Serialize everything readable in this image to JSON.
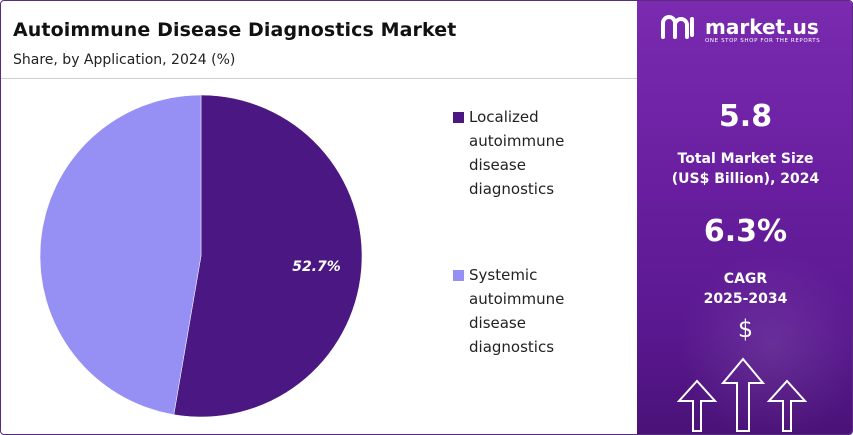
{
  "header": {
    "title": "Autoimmune Disease Diagnostics Market",
    "subtitle": "Share, by Application, 2024 (%)"
  },
  "chart_data": {
    "type": "pie",
    "title": "Autoimmune Disease Diagnostics Market",
    "subtitle": "Share, by Application, 2024 (%)",
    "categories": [
      "Localized autoimmune disease diagnostics",
      "Systemic autoimmune disease diagnostics"
    ],
    "values": [
      52.7,
      47.3
    ],
    "data_labels": [
      "52.7%",
      ""
    ],
    "colors": [
      "#4b1782",
      "#9690f5"
    ],
    "legend_position": "right"
  },
  "legend": {
    "items": [
      {
        "label": "Localized\nautoimmune\ndisease\ndiagnostics",
        "color": "#4b1782"
      },
      {
        "label": "Systemic\nautoimmune\ndisease\ndiagnostics",
        "color": "#9690f5"
      }
    ]
  },
  "panel": {
    "brand": "market.us",
    "tagline": "ONE STOP SHOP FOR THE REPORTS",
    "market_size_value": "5.8",
    "market_size_label": "Total Market Size\n(US$ Billion), 2024",
    "cagr_value": "6.3%",
    "cagr_label": "CAGR\n2025-2034",
    "currency_symbol": "$",
    "icons": [
      "logo-icon",
      "dollar-icon",
      "up-arrow-icon"
    ]
  }
}
